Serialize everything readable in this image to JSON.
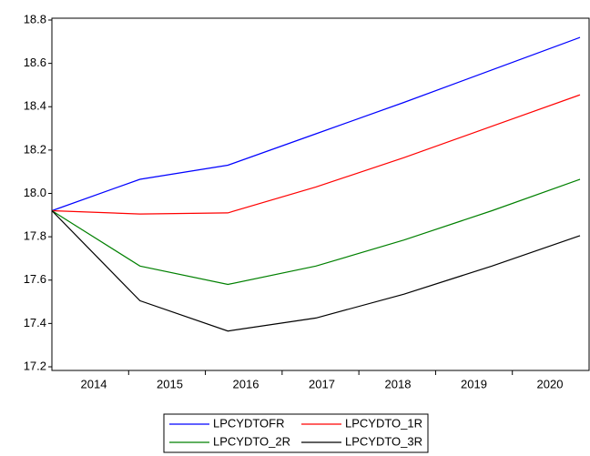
{
  "chart_data": {
    "type": "line",
    "categories": [
      "2014",
      "2015",
      "2016",
      "2017",
      "2018",
      "2019",
      "2020"
    ],
    "series": [
      {
        "name": "LPCYDTOFR",
        "color": "#0000ff",
        "values": [
          17.92,
          18.065,
          18.13,
          18.275,
          18.42,
          18.57,
          18.72
        ]
      },
      {
        "name": "LPCYDTO_1R",
        "color": "#ff0000",
        "values": [
          17.92,
          17.905,
          17.91,
          18.03,
          18.165,
          18.31,
          18.455
        ]
      },
      {
        "name": "LPCYDTO_2R",
        "color": "#008000",
        "values": [
          17.92,
          17.665,
          17.58,
          17.665,
          17.785,
          17.92,
          18.065
        ]
      },
      {
        "name": "LPCYDTO_3R",
        "color": "#000000",
        "values": [
          17.92,
          17.505,
          17.365,
          17.425,
          17.535,
          17.665,
          17.805
        ]
      }
    ],
    "ylim": [
      17.2,
      18.8
    ],
    "yticks": [
      17.2,
      17.4,
      17.6,
      17.8,
      {
        "value": 18,
        "label": "18.0"
      },
      18.2,
      18.4,
      18.6,
      18.8
    ],
    "grid": false,
    "legend": "bottom"
  }
}
